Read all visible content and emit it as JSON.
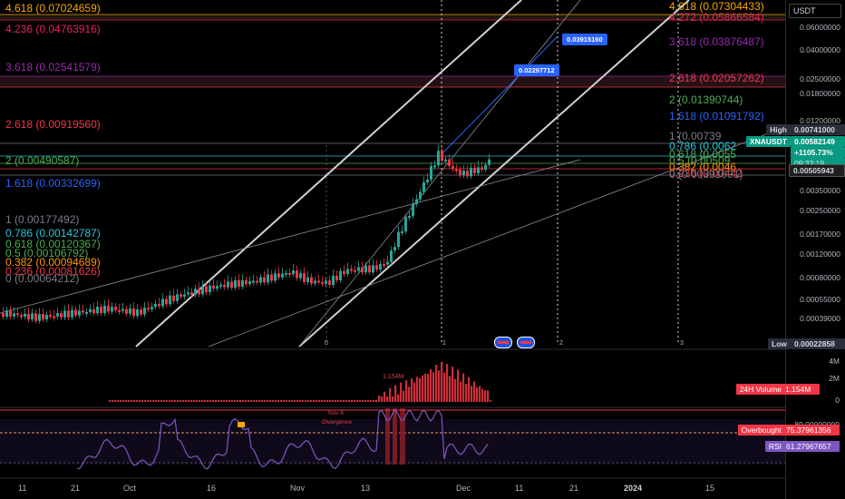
{
  "currency": "USDT",
  "right_axis": {
    "price_ticks": [
      "0.06000000",
      "0.04000000",
      "0.02500000",
      "0.01800000",
      "0.01200000",
      "0.00350000",
      "0.00250000",
      "0.00170000",
      "0.00120000",
      "0.00080000",
      "0.00055000",
      "0.00039000"
    ],
    "high_label": "High",
    "high_value": "0.00741000",
    "symbol": "XNAUSDT",
    "last_price": "0.00582149",
    "change_pct": "+1105.73%",
    "countdown": "09:33:19",
    "ref_price": "0.00505943",
    "low_label": "Low",
    "low_value": "0.00022858",
    "volume_ticks": [
      "4M",
      "2M",
      "0"
    ],
    "volume_label": "24H Volume",
    "volume_value": "1.154M",
    "rsi_top_tick": "80.00000000",
    "overbought_label": "Overbought",
    "overbought_value": "75.37961356",
    "rsi_label": "RSI",
    "rsi_value": "61.27967657"
  },
  "fib_left": [
    {
      "text": "4.618 (0.07024659)",
      "color": "#f7a600"
    },
    {
      "text": "4.236 (0.04763916)",
      "color": "#e91e63"
    },
    {
      "text": "3.618 (0.02541579)",
      "color": "#9c27b0"
    },
    {
      "text": "2.618 (0.00919560)",
      "color": "#f23645"
    },
    {
      "text": "2 (0.00490587)",
      "color": "#4caf50"
    },
    {
      "text": "1.618 (0.00332699)",
      "color": "#2962ff"
    },
    {
      "text": "1 (0.00177492)",
      "color": "#787b86"
    },
    {
      "text": "0.786 (0.00142787)",
      "color": "#26c6da"
    },
    {
      "text": "0.618 (0.00120367)",
      "color": "#4caf50"
    },
    {
      "text": "0.5 (0.00106792)",
      "color": "#4caf50"
    },
    {
      "text": "0.382 (0.00094689)",
      "color": "#ff9800"
    },
    {
      "text": "0.236 (0.00081626)",
      "color": "#f23645"
    },
    {
      "text": "0 (0.00064212)",
      "color": "#787b86"
    }
  ],
  "fib_right": [
    {
      "text": "4.618 (0.07304433)",
      "color": "#f7a600"
    },
    {
      "text": "4.272 (0.05866584)",
      "color": "#e91e63"
    },
    {
      "text": "3.618 (0.03876487)",
      "color": "#9c27b0"
    },
    {
      "text": "2.618 (0.02057262)",
      "color": "#f23645"
    },
    {
      "text": "2 (0.01390744)",
      "color": "#4caf50"
    },
    {
      "text": "1.618 (0.01091792)",
      "color": "#2962ff"
    },
    {
      "text": "1 (0.00739",
      "color": "#787b86"
    },
    {
      "text": "0.786 (0.0062",
      "color": "#26c6da"
    },
    {
      "text": "0.618 (0.0055",
      "color": "#4caf50"
    },
    {
      "text": "0.5 (0.00509",
      "color": "#4caf50"
    },
    {
      "text": "0.382 (0.0046",
      "color": "#ff9800"
    },
    {
      "text": "0.236 (0.00442",
      "color": "#f23645"
    },
    {
      "text": "0 (0.00391691)",
      "color": "#787b86"
    }
  ],
  "callouts": [
    "0.03915160",
    "0.02297712"
  ],
  "volume_peak_label": "1.154M",
  "rsi_annotations": {
    "nov": "Nov 6",
    "divergence": "Divergence"
  },
  "channel_marks": [
    "0",
    "1",
    "2",
    "3"
  ],
  "x_labels": [
    "11",
    "21",
    "Oct",
    "16",
    "Nov",
    "13",
    "Dec",
    "11",
    "21",
    "2024",
    "15"
  ],
  "colors": {
    "up": "#26a69a",
    "down": "#f23645",
    "rsi": "#7e57c2",
    "accent": "#2962ff"
  }
}
